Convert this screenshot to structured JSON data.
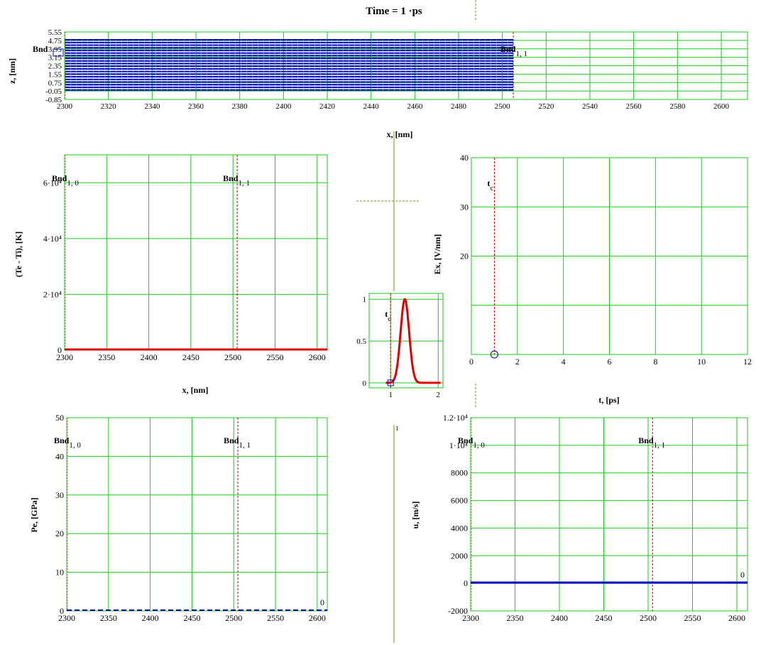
{
  "header": {
    "time_label": "Time = 1 ·ps"
  },
  "chart_data": [
    {
      "id": "z_profile",
      "type": "line",
      "ylabel": "z, [nm]",
      "xlabel": "x, [nm]",
      "xlim": [
        2300,
        2612
      ],
      "ylim": [
        -0.85,
        5.55
      ],
      "x_ticks": [
        2300,
        2320,
        2340,
        2360,
        2380,
        2400,
        2420,
        2440,
        2460,
        2480,
        2500,
        2520,
        2540,
        2560,
        2580,
        2600
      ],
      "y_ticks": [
        "-0.85",
        "-0.05",
        "0.75",
        "1.55",
        "2.35",
        "3.15",
        "3.95",
        "4.75",
        "5.55"
      ],
      "y_tick_values": [
        -0.85,
        -0.05,
        0.75,
        1.55,
        2.35,
        3.15,
        3.95,
        4.75,
        5.55
      ],
      "grid": true,
      "series": [
        {
          "layers_z": [
            0.05,
            0.3,
            0.55,
            0.8,
            1.05,
            1.3,
            1.55,
            1.8,
            2.05,
            2.3,
            2.55,
            2.8,
            3.05,
            3.3,
            3.55,
            3.8,
            4.05,
            4.3,
            4.55,
            4.8
          ],
          "x_range": [
            2300,
            2505
          ]
        }
      ],
      "markers": [
        {
          "label": "Bnd",
          "sub": "1, 1",
          "x": 2505
        },
        {
          "label": "Bnd",
          "sub": "",
          "x": 2300
        }
      ]
    },
    {
      "id": "te_ti",
      "type": "line",
      "ylabel": "(Te - Ti), [K]",
      "xlabel": "x, [nm]",
      "xlim": [
        2300,
        2612
      ],
      "ylim": [
        0,
        70000
      ],
      "x_ticks": [
        2300,
        2350,
        2400,
        2450,
        2500,
        2550,
        2600
      ],
      "y_ticks": [
        "0",
        "2·10⁴",
        "4·10⁴",
        "6·10⁴"
      ],
      "y_tick_values": [
        0,
        20000,
        40000,
        60000
      ],
      "grid": true,
      "series": [
        {
          "x": [
            2300,
            2612
          ],
          "y": [
            0,
            0
          ],
          "color": "#e00000"
        }
      ],
      "markers": [
        {
          "label": "Bnd",
          "sub": "1, 0",
          "x": 2300
        },
        {
          "label": "Bnd",
          "sub": "1, 1",
          "x": 2505
        }
      ]
    },
    {
      "id": "pulse",
      "type": "line",
      "xlim": [
        0.55,
        2.1
      ],
      "ylim": [
        -0.06,
        1.07
      ],
      "x_ticks": [
        "1",
        "2"
      ],
      "x_tick_values": [
        1,
        2
      ],
      "y_ticks": [
        "0",
        "0.5",
        "1"
      ],
      "y_tick_values": [
        0,
        0.5,
        1
      ],
      "grid": true,
      "series": [
        {
          "type": "gaussian",
          "center": 1.3,
          "sigma": 0.09,
          "peak": 1,
          "color": "#e00000"
        }
      ],
      "markers": [
        {
          "label": "t",
          "sub": "c",
          "x": 1
        }
      ]
    },
    {
      "id": "ex_field",
      "type": "line",
      "ylabel": "Ex, [V/nm]",
      "xlabel": "t, [ps]",
      "xlim": [
        0,
        12
      ],
      "ylim": [
        0,
        40
      ],
      "x_ticks": [
        0,
        2,
        4,
        6,
        8,
        10,
        12
      ],
      "y_ticks": [
        "20",
        "30",
        "40"
      ],
      "y_tick_values": [
        20,
        30,
        40
      ],
      "grid": true,
      "series": [
        {
          "x": [
            1
          ],
          "y": [
            0
          ],
          "marker": "circle",
          "color": "#0000c0"
        }
      ],
      "markers": [
        {
          "label": "t",
          "sub": "c",
          "x": 1
        }
      ]
    },
    {
      "id": "pe",
      "type": "line",
      "ylabel": "Pe, [GPa]",
      "xlim": [
        2300,
        2612
      ],
      "ylim": [
        0,
        50
      ],
      "x_ticks": [
        2300,
        2350,
        2400,
        2450,
        2500,
        2550,
        2600
      ],
      "y_ticks": [
        "0",
        "10",
        "20",
        "30",
        "40",
        "50"
      ],
      "y_tick_values": [
        0,
        10,
        20,
        30,
        40,
        50
      ],
      "grid": true,
      "series": [
        {
          "x": [
            2300,
            2612
          ],
          "y": [
            0,
            0
          ],
          "color": "#0000c0",
          "dashed": true
        }
      ],
      "markers": [
        {
          "label": "Bnd",
          "sub": "1, 0",
          "x": 2300
        },
        {
          "label": "Bnd",
          "sub": "1, 1",
          "x": 2505
        }
      ],
      "annotation": "0"
    },
    {
      "id": "velocity",
      "type": "line",
      "ylabel": "u, [m/s]",
      "xlim": [
        2300,
        2612
      ],
      "ylim": [
        -2000,
        12000
      ],
      "x_ticks": [
        2300,
        2350,
        2400,
        2450,
        2500,
        2550,
        2600
      ],
      "y_ticks": [
        "-2000",
        "0",
        "2000",
        "4000",
        "6000",
        "8000",
        "1·10⁴",
        "1.2·10⁴"
      ],
      "y_tick_values": [
        -2000,
        0,
        2000,
        4000,
        6000,
        8000,
        10000,
        12000
      ],
      "grid": true,
      "series": [
        {
          "x": [
            2300,
            2612
          ],
          "y": [
            0,
            0
          ],
          "color": "#0000c0"
        }
      ],
      "markers": [
        {
          "label": "Bnd",
          "sub": "1, 0",
          "x": 2300
        },
        {
          "label": "Bnd",
          "sub": "1, 1",
          "x": 2505
        }
      ],
      "annotation": "0"
    }
  ],
  "misc": {
    "stray_mark": "1"
  }
}
